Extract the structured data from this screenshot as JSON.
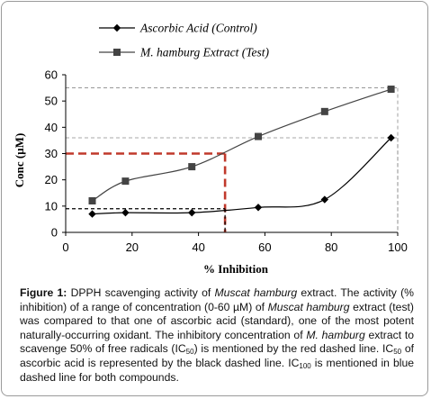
{
  "chart_data": {
    "type": "line",
    "title": "",
    "xlabel": "% Inhibition",
    "ylabel": "Conc (µM)",
    "xlim": [
      0,
      100
    ],
    "ylim": [
      0,
      60
    ],
    "xticks": [
      "0",
      "20",
      "40",
      "60",
      "80",
      "100"
    ],
    "yticks": [
      "0",
      "10",
      "20",
      "30",
      "40",
      "50",
      "60"
    ],
    "legend_position": "top-left",
    "grid": false,
    "series": [
      {
        "name": "Ascorbic Acid (Control)",
        "color": "#000000",
        "marker": "diamond",
        "x": [
          8,
          18,
          38,
          58,
          78,
          98
        ],
        "y": [
          7,
          7.5,
          7.5,
          9.5,
          12.5,
          36
        ]
      },
      {
        "name": "M. hamburg Extract (Test)",
        "color": "#444444",
        "marker": "square",
        "x": [
          8,
          18,
          38,
          58,
          78,
          98
        ],
        "y": [
          12,
          19.5,
          25,
          36.5,
          46,
          54.5
        ]
      }
    ],
    "reference_lines": [
      {
        "color": "#c0392b",
        "style": "dashed",
        "horizontal_y": 30,
        "vertical_x": 48
      },
      {
        "color": "#000000",
        "style": "dashed",
        "horizontal_y": 9,
        "vertical_x": 48
      },
      {
        "color": "#8a8a8a",
        "style": "dashed",
        "horizontal_y": 36,
        "vertical_x": 100
      },
      {
        "color": "#8a8a8a",
        "style": "dashed",
        "horizontal_y": 55,
        "vertical_x": 100
      }
    ]
  },
  "caption": {
    "label": "Figure 1:",
    "t1": " DPPH scavenging activity of ",
    "t2": "Muscat hamburg",
    "t3": " extract. The activity (% inhibition) of a range of concentration (0-60 µM) of ",
    "t4": "Muscat hamburg",
    "t5": " extract (test) was compared to that one of ascorbic acid (standard), one of the most potent naturally-occurring oxidant. The inhibitory concentration of ",
    "t6": "M. hamburg",
    "t7": " extract to scavenge 50% of free radicals (IC",
    "t8": "50",
    "t9": ") is mentioned by the red dashed line. IC",
    "t10": "50",
    "t11": " of ascorbic acid is represented by the black dashed line. IC",
    "t12": "100",
    "t13": " is mentioned in blue dashed line for both compounds."
  }
}
